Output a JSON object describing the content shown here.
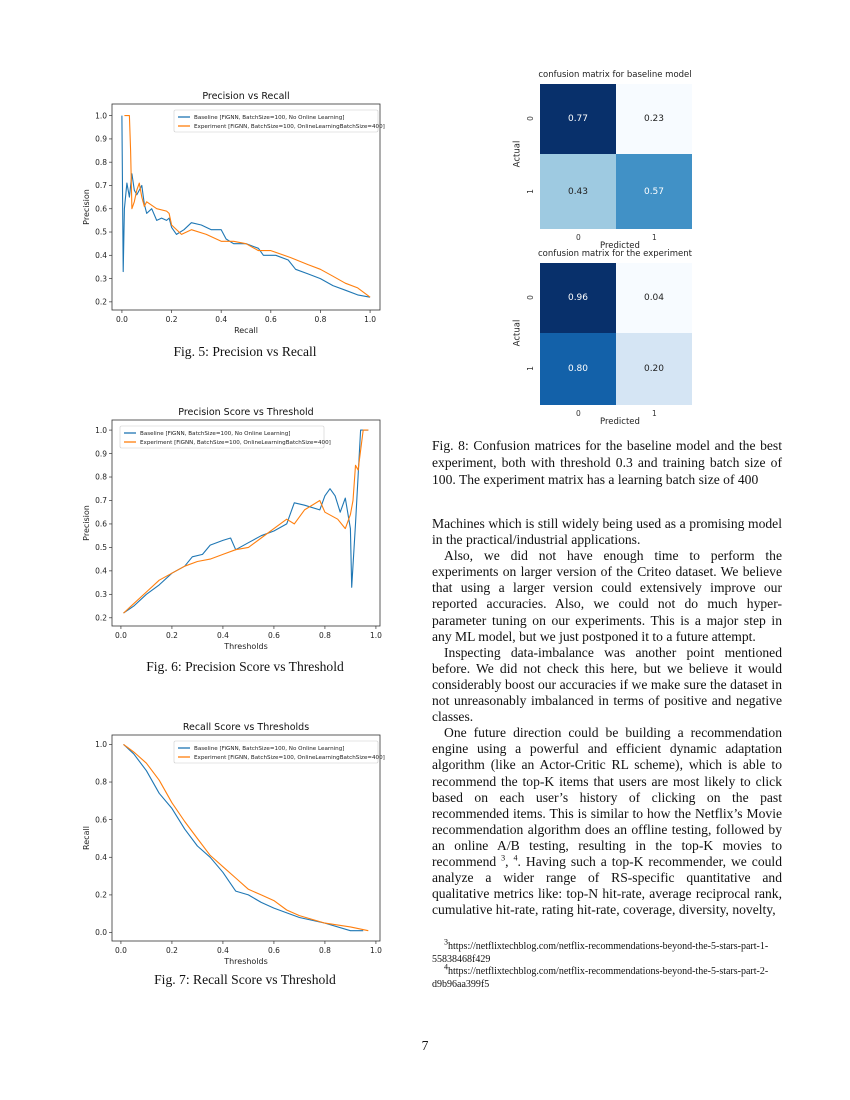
{
  "colors": {
    "baseline": "#1f77b4",
    "experiment": "#ff7f0e"
  },
  "legend": {
    "baseline": "Baseline [FiGNN, BatchSize=100, No Online Learning]",
    "experiment": "Experiment [FiGNN, BatchSize=100, OnlineLearningBatchSize=400]"
  },
  "chart_data": [
    {
      "type": "line",
      "title": "Precision vs Recall",
      "xlabel": "Recall",
      "ylabel": "Precision",
      "xlim": [
        -0.04,
        1.04
      ],
      "ylim": [
        0.165,
        1.05
      ],
      "xticks": [
        0.0,
        0.2,
        0.4,
        0.6,
        0.8,
        1.0
      ],
      "yticks": [
        0.2,
        0.3,
        0.4,
        0.5,
        0.6,
        0.7,
        0.8,
        0.9,
        1.0
      ],
      "legend": "top-right",
      "grid": false,
      "series": [
        {
          "name": "Baseline [FiGNN, BatchSize=100, No Online Learning]",
          "points": [
            [
              0.0,
              1.0
            ],
            [
              0.005,
              0.33
            ],
            [
              0.01,
              0.6
            ],
            [
              0.02,
              0.71
            ],
            [
              0.03,
              0.65
            ],
            [
              0.04,
              0.75
            ],
            [
              0.05,
              0.68
            ],
            [
              0.06,
              0.66
            ],
            [
              0.08,
              0.7
            ],
            [
              0.09,
              0.62
            ],
            [
              0.1,
              0.58
            ],
            [
              0.12,
              0.6
            ],
            [
              0.14,
              0.55
            ],
            [
              0.16,
              0.56
            ],
            [
              0.18,
              0.55
            ],
            [
              0.19,
              0.56
            ],
            [
              0.2,
              0.52
            ],
            [
              0.22,
              0.49
            ],
            [
              0.25,
              0.51
            ],
            [
              0.28,
              0.54
            ],
            [
              0.32,
              0.53
            ],
            [
              0.36,
              0.51
            ],
            [
              0.4,
              0.51
            ],
            [
              0.42,
              0.47
            ],
            [
              0.45,
              0.45
            ],
            [
              0.5,
              0.45
            ],
            [
              0.55,
              0.43
            ],
            [
              0.57,
              0.4
            ],
            [
              0.62,
              0.4
            ],
            [
              0.67,
              0.38
            ],
            [
              0.7,
              0.34
            ],
            [
              0.75,
              0.32
            ],
            [
              0.8,
              0.3
            ],
            [
              0.85,
              0.27
            ],
            [
              0.9,
              0.25
            ],
            [
              0.95,
              0.23
            ],
            [
              1.0,
              0.22
            ]
          ]
        },
        {
          "name": "Experiment [FiGNN, BatchSize=100, OnlineLearningBatchSize=400]",
          "points": [
            [
              0.01,
              1.0
            ],
            [
              0.03,
              1.0
            ],
            [
              0.035,
              0.85
            ],
            [
              0.04,
              0.6
            ],
            [
              0.05,
              0.63
            ],
            [
              0.06,
              0.68
            ],
            [
              0.07,
              0.71
            ],
            [
              0.08,
              0.65
            ],
            [
              0.09,
              0.61
            ],
            [
              0.1,
              0.63
            ],
            [
              0.14,
              0.6
            ],
            [
              0.18,
              0.59
            ],
            [
              0.19,
              0.58
            ],
            [
              0.2,
              0.53
            ],
            [
              0.24,
              0.49
            ],
            [
              0.28,
              0.51
            ],
            [
              0.34,
              0.49
            ],
            [
              0.4,
              0.46
            ],
            [
              0.45,
              0.46
            ],
            [
              0.5,
              0.45
            ],
            [
              0.55,
              0.42
            ],
            [
              0.6,
              0.42
            ],
            [
              0.68,
              0.39
            ],
            [
              0.75,
              0.36
            ],
            [
              0.8,
              0.34
            ],
            [
              0.85,
              0.31
            ],
            [
              0.9,
              0.28
            ],
            [
              0.95,
              0.26
            ],
            [
              1.0,
              0.22
            ]
          ]
        }
      ]
    },
    {
      "type": "line",
      "title": "Precision Score vs Threshold",
      "xlabel": "Thresholds",
      "ylabel": "Precision",
      "xlim": [
        -0.035,
        1.016
      ],
      "ylim": [
        0.165,
        1.043
      ],
      "xticks": [
        0.0,
        0.2,
        0.4,
        0.6,
        0.8,
        1.0
      ],
      "yticks": [
        0.2,
        0.3,
        0.4,
        0.5,
        0.6,
        0.7,
        0.8,
        0.9,
        1.0
      ],
      "legend": "top-left",
      "grid": false,
      "series": [
        {
          "name": "Baseline [FiGNN, BatchSize=100, No Online Learning]",
          "points": [
            [
              0.01,
              0.22
            ],
            [
              0.05,
              0.25
            ],
            [
              0.1,
              0.3
            ],
            [
              0.15,
              0.34
            ],
            [
              0.2,
              0.39
            ],
            [
              0.25,
              0.42
            ],
            [
              0.28,
              0.46
            ],
            [
              0.32,
              0.47
            ],
            [
              0.35,
              0.51
            ],
            [
              0.4,
              0.53
            ],
            [
              0.43,
              0.54
            ],
            [
              0.45,
              0.49
            ],
            [
              0.5,
              0.52
            ],
            [
              0.55,
              0.55
            ],
            [
              0.6,
              0.57
            ],
            [
              0.65,
              0.6
            ],
            [
              0.68,
              0.69
            ],
            [
              0.72,
              0.68
            ],
            [
              0.78,
              0.66
            ],
            [
              0.8,
              0.72
            ],
            [
              0.82,
              0.75
            ],
            [
              0.84,
              0.72
            ],
            [
              0.86,
              0.65
            ],
            [
              0.88,
              0.71
            ],
            [
              0.9,
              0.58
            ],
            [
              0.905,
              0.33
            ],
            [
              0.92,
              0.6
            ],
            [
              0.94,
              1.0
            ],
            [
              0.97,
              1.0
            ]
          ]
        },
        {
          "name": "Experiment [FiGNN, BatchSize=100, OnlineLearningBatchSize=400]",
          "points": [
            [
              0.01,
              0.22
            ],
            [
              0.05,
              0.26
            ],
            [
              0.1,
              0.31
            ],
            [
              0.15,
              0.36
            ],
            [
              0.2,
              0.39
            ],
            [
              0.25,
              0.42
            ],
            [
              0.3,
              0.44
            ],
            [
              0.35,
              0.45
            ],
            [
              0.4,
              0.47
            ],
            [
              0.45,
              0.49
            ],
            [
              0.5,
              0.5
            ],
            [
              0.55,
              0.54
            ],
            [
              0.6,
              0.58
            ],
            [
              0.65,
              0.62
            ],
            [
              0.68,
              0.6
            ],
            [
              0.72,
              0.66
            ],
            [
              0.78,
              0.7
            ],
            [
              0.8,
              0.65
            ],
            [
              0.85,
              0.62
            ],
            [
              0.88,
              0.58
            ],
            [
              0.9,
              0.64
            ],
            [
              0.91,
              0.7
            ],
            [
              0.92,
              0.85
            ],
            [
              0.93,
              0.83
            ],
            [
              0.95,
              1.0
            ],
            [
              0.97,
              1.0
            ]
          ]
        }
      ]
    },
    {
      "type": "line",
      "title": "Recall Score vs Thresholds",
      "xlabel": "Thresholds",
      "ylabel": "Recall",
      "xlim": [
        -0.035,
        1.016
      ],
      "ylim": [
        -0.045,
        1.05
      ],
      "xticks": [
        0.0,
        0.2,
        0.4,
        0.6,
        0.8,
        1.0
      ],
      "yticks": [
        0.0,
        0.2,
        0.4,
        0.6,
        0.8,
        1.0
      ],
      "legend": "top-right",
      "grid": false,
      "series": [
        {
          "name": "Baseline [FiGNN, BatchSize=100, No Online Learning]",
          "points": [
            [
              0.01,
              1.0
            ],
            [
              0.05,
              0.95
            ],
            [
              0.1,
              0.86
            ],
            [
              0.15,
              0.74
            ],
            [
              0.2,
              0.66
            ],
            [
              0.25,
              0.55
            ],
            [
              0.3,
              0.46
            ],
            [
              0.35,
              0.4
            ],
            [
              0.4,
              0.32
            ],
            [
              0.45,
              0.22
            ],
            [
              0.5,
              0.2
            ],
            [
              0.55,
              0.16
            ],
            [
              0.6,
              0.13
            ],
            [
              0.7,
              0.08
            ],
            [
              0.8,
              0.05
            ],
            [
              0.9,
              0.01
            ],
            [
              0.95,
              0.01
            ]
          ]
        },
        {
          "name": "Experiment [FiGNN, BatchSize=100, OnlineLearningBatchSize=400]",
          "points": [
            [
              0.01,
              1.0
            ],
            [
              0.05,
              0.96
            ],
            [
              0.1,
              0.9
            ],
            [
              0.15,
              0.81
            ],
            [
              0.2,
              0.69
            ],
            [
              0.25,
              0.59
            ],
            [
              0.3,
              0.5
            ],
            [
              0.35,
              0.41
            ],
            [
              0.4,
              0.35
            ],
            [
              0.45,
              0.29
            ],
            [
              0.5,
              0.23
            ],
            [
              0.55,
              0.2
            ],
            [
              0.6,
              0.17
            ],
            [
              0.65,
              0.12
            ],
            [
              0.7,
              0.09
            ],
            [
              0.8,
              0.05
            ],
            [
              0.9,
              0.03
            ],
            [
              0.97,
              0.01
            ]
          ]
        }
      ]
    },
    {
      "type": "heatmap",
      "title": "confusion matrix for baseline model",
      "xlabel": "Predicted",
      "ylabel": "Actual",
      "xticks": [
        "0",
        "1"
      ],
      "yticks": [
        "0",
        "1"
      ],
      "values": [
        [
          "0.77",
          "0.23"
        ],
        [
          "0.43",
          "0.57"
        ]
      ],
      "colors": [
        [
          "#08306b",
          "#f7fbff"
        ],
        [
          "#9ecae1",
          "#4191c6"
        ]
      ]
    },
    {
      "type": "heatmap",
      "title": "confusion matrix for the experiment",
      "xlabel": "Predicted",
      "ylabel": "Actual",
      "xticks": [
        "0",
        "1"
      ],
      "yticks": [
        "0",
        "1"
      ],
      "values": [
        [
          "0.96",
          "0.04"
        ],
        [
          "0.80",
          "0.20"
        ]
      ],
      "colors": [
        [
          "#08306b",
          "#f7fbff"
        ],
        [
          "#1361a9",
          "#d5e5f4"
        ]
      ]
    }
  ],
  "captions": {
    "fig5": "Fig. 5: Precision vs Recall",
    "fig6": "Fig. 6: Precision Score vs Threshold",
    "fig7": "Fig. 7: Recall Score vs Threshold",
    "fig8": "Fig. 8: Confusion matrices for the baseline model and the best experiment, both with threshold 0.3 and training batch size of 100. The experiment matrix has a learning batch size of 400"
  },
  "body": {
    "p1": "Machines which is still widely being used as a promising model in the practical/industrial applications.",
    "p2": "Also, we did not have enough time to perform the experiments on larger version of the Criteo dataset. We believe that using a larger version could extensively improve our reported accuracies. Also, we could not do much hyper-parameter tuning on our experiments. This is a major step in any ML model, but we just postponed it to a future attempt.",
    "p3": "Inspecting data-imbalance was another point mentioned before. We did not check this here, but we believe it would considerably boost our accuracies if we make sure the dataset in not unreasonably imbalanced in terms of positive and negative classes.",
    "p4a": "One future direction could be building a recommendation engine using a powerful and efficient dynamic adaptation algorithm (like an Actor-Critic RL scheme), which is able to recommend the top-K items that users are most likely to click based on each user’s history of clicking on the past recommended items. This is similar to how the Netflix’s Movie recommendation algorithm does an offline testing, followed by an online A/B testing, resulting in the top-K movies to recommend ",
    "ref3": "3",
    "sep": ", ",
    "ref4": "4",
    "p4b": ". Having such a top-K recommender, we could analyze a wider range of RS-specific quantitative and qualitative metrics like: top-N hit-rate, average reciprocal rank, cumulative hit-rate, rating hit-rate, coverage, diversity, novelty,"
  },
  "footnotes": [
    {
      "mark": "3",
      "text": "https://netflixtechblog.com/netflix-recommendations-beyond-the-5-stars-part-1-55838468f429"
    },
    {
      "mark": "4",
      "text": "https://netflixtechblog.com/netflix-recommendations-beyond-the-5-stars-part-2-d9b96aa399f5"
    }
  ],
  "page_number": "7"
}
